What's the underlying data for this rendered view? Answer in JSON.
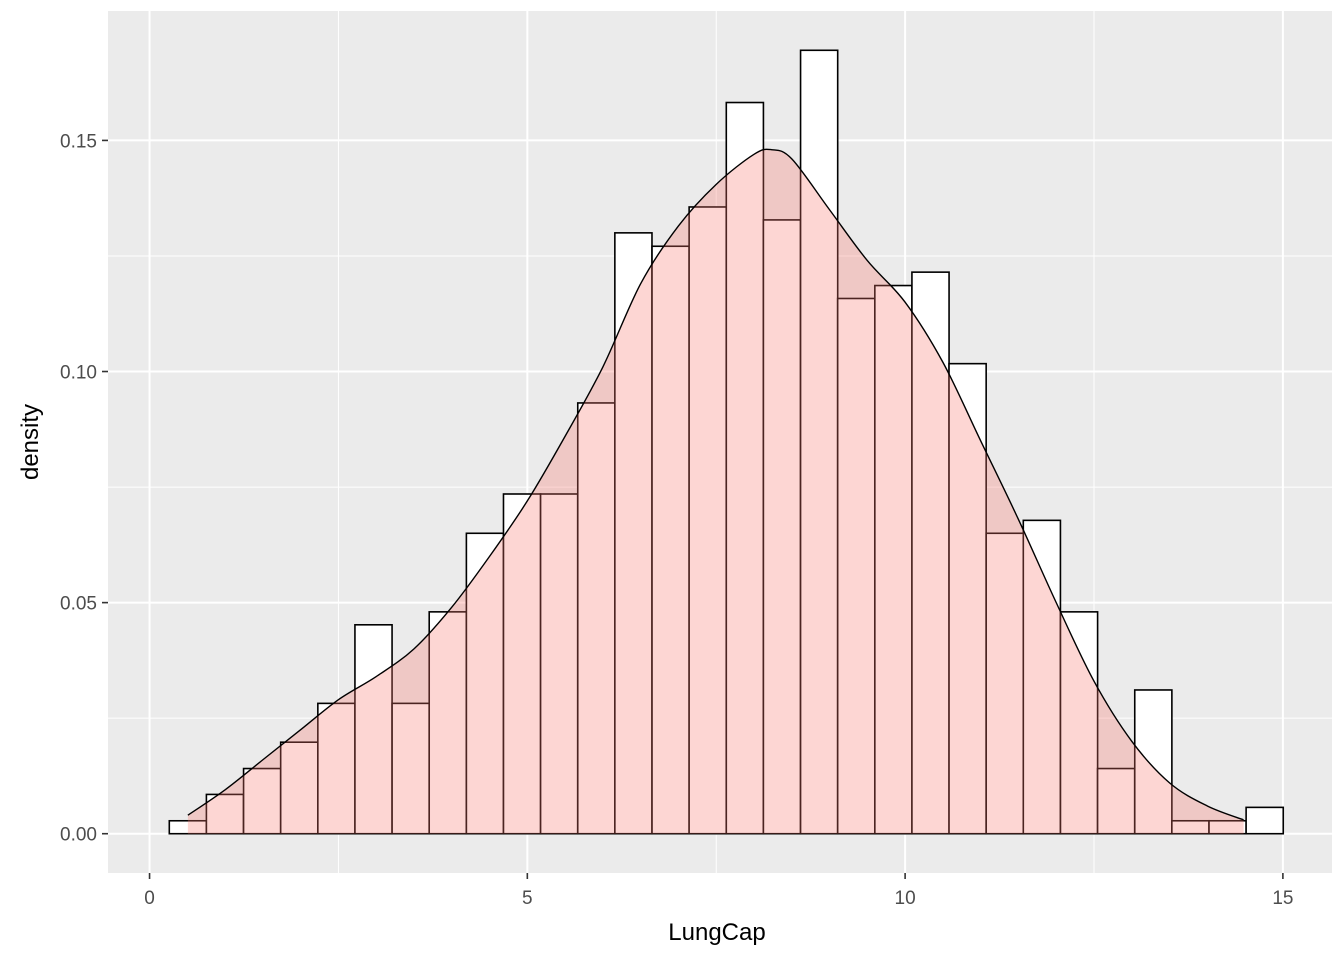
{
  "chart_data": {
    "type": "bar",
    "subtype": "histogram-with-density",
    "title": "",
    "xlabel": "LungCap",
    "ylabel": "density",
    "xlim": [
      -0.55,
      15.65
    ],
    "ylim": [
      -0.0085,
      0.178
    ],
    "x_ticks": [
      0,
      5,
      10,
      15
    ],
    "x_tick_labels": [
      "0",
      "5",
      "10",
      "15"
    ],
    "y_ticks": [
      0.0,
      0.05,
      0.1,
      0.15
    ],
    "y_tick_labels": [
      "0.00",
      "0.05",
      "0.10",
      "0.15"
    ],
    "grid": true,
    "bin_width": 0.4914,
    "bin_centers": [
      0.507,
      0.998,
      1.49,
      1.981,
      2.473,
      2.964,
      3.456,
      3.947,
      4.439,
      4.93,
      5.421,
      5.913,
      6.404,
      6.896,
      7.387,
      7.879,
      8.37,
      8.862,
      9.353,
      9.845,
      10.336,
      10.827,
      11.319,
      11.81,
      12.302,
      12.793,
      13.285,
      13.776,
      14.268,
      14.759
    ],
    "series": [
      {
        "geom": "histogram",
        "fill": "#ffffff",
        "stroke": "#000000",
        "values": [
          0.0028,
          0.0085,
          0.0141,
          0.0198,
          0.0282,
          0.0452,
          0.0282,
          0.048,
          0.065,
          0.0735,
          0.0735,
          0.0932,
          0.13,
          0.1271,
          0.1356,
          0.1582,
          0.1328,
          0.1695,
          0.1158,
          0.1186,
          0.1215,
          0.1017,
          0.065,
          0.0678,
          0.048,
          0.0141,
          0.0311,
          0.0028,
          0.0028,
          0.0057
        ]
      },
      {
        "geom": "density",
        "fill": "#f8766d",
        "fill_opacity": 0.3,
        "stroke": "#000000",
        "x": [
          0.507,
          1.0,
          1.5,
          2.0,
          2.5,
          3.0,
          3.5,
          4.0,
          4.5,
          5.0,
          5.5,
          6.0,
          6.5,
          7.0,
          7.5,
          8.0,
          8.23,
          8.5,
          9.0,
          9.5,
          10.0,
          10.5,
          11.0,
          11.5,
          12.0,
          12.5,
          13.0,
          13.5,
          14.0,
          14.48
        ],
        "y": [
          0.004,
          0.0095,
          0.016,
          0.0225,
          0.029,
          0.034,
          0.04,
          0.049,
          0.06,
          0.072,
          0.086,
          0.101,
          0.119,
          0.1315,
          0.1405,
          0.147,
          0.148,
          0.146,
          0.135,
          0.124,
          0.115,
          0.102,
          0.085,
          0.068,
          0.05,
          0.033,
          0.02,
          0.011,
          0.006,
          0.003
        ]
      }
    ]
  }
}
